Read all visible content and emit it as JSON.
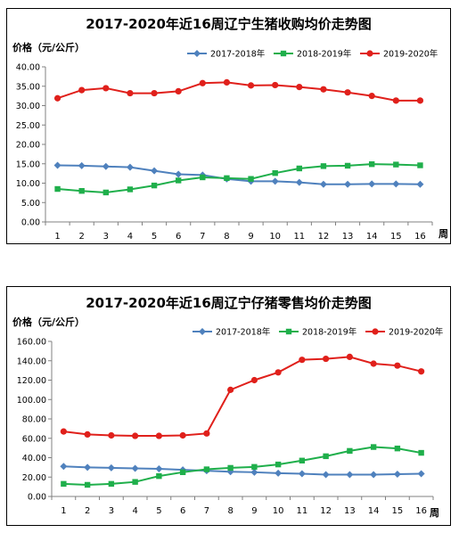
{
  "chart_data": [
    {
      "type": "line",
      "title": "2017-2020年近16周辽宁生猪收购均价走势图",
      "ylabel": "价格（元/公斤）",
      "xlabel": "周",
      "categories": [
        "1",
        "2",
        "3",
        "4",
        "5",
        "6",
        "7",
        "8",
        "9",
        "10",
        "11",
        "12",
        "13",
        "14",
        "15",
        "16"
      ],
      "ylim": [
        0,
        40
      ],
      "yticks": [
        "0.00",
        "5.00",
        "10.00",
        "15.00",
        "20.00",
        "25.00",
        "30.00",
        "35.00",
        "40.00"
      ],
      "legend_position": "top-right",
      "grid": false,
      "series": [
        {
          "name": "2017-2018年",
          "color": "#4F81BD",
          "marker": "diamond",
          "values": [
            14.6,
            14.5,
            14.3,
            14.1,
            13.2,
            12.3,
            12.1,
            11.1,
            10.5,
            10.5,
            10.2,
            9.7,
            9.7,
            9.8,
            9.8,
            9.7
          ]
        },
        {
          "name": "2018-2019年",
          "color": "#1FAF4B",
          "marker": "square",
          "values": [
            8.5,
            8.0,
            7.6,
            8.4,
            9.4,
            10.7,
            11.5,
            11.3,
            11.1,
            12.6,
            13.8,
            14.4,
            14.5,
            14.9,
            14.8,
            14.6
          ]
        },
        {
          "name": "2019-2020年",
          "color": "#E0201B",
          "marker": "circle",
          "values": [
            31.9,
            34.0,
            34.5,
            33.2,
            33.2,
            33.7,
            35.8,
            36.0,
            35.2,
            35.3,
            34.8,
            34.2,
            33.4,
            32.5,
            31.3,
            31.3
          ]
        }
      ]
    },
    {
      "type": "line",
      "title": "2017-2020年近16周辽宁仔猪零售均价走势图",
      "ylabel": "价格（元/公斤）",
      "xlabel": "周",
      "categories": [
        "1",
        "2",
        "3",
        "4",
        "5",
        "6",
        "7",
        "8",
        "9",
        "10",
        "11",
        "12",
        "13",
        "14",
        "15",
        "16"
      ],
      "ylim": [
        0,
        160
      ],
      "yticks": [
        "0.00",
        "20.00",
        "40.00",
        "60.00",
        "80.00",
        "100.00",
        "120.00",
        "140.00",
        "160.00"
      ],
      "legend_position": "top-right",
      "grid": false,
      "series": [
        {
          "name": "2017-2018年",
          "color": "#4F81BD",
          "marker": "diamond",
          "values": [
            31,
            30,
            29.5,
            29,
            28.5,
            27.5,
            26.5,
            25.5,
            25,
            24,
            23.5,
            22.5,
            22.5,
            22.5,
            23,
            23.5
          ]
        },
        {
          "name": "2018-2019年",
          "color": "#1FAF4B",
          "marker": "square",
          "values": [
            13,
            12,
            13,
            15,
            21,
            25,
            28,
            29.5,
            30.5,
            33,
            37,
            41.5,
            47,
            51,
            49.5,
            45
          ]
        },
        {
          "name": "2019-2020年",
          "color": "#E0201B",
          "marker": "circle",
          "values": [
            67,
            64,
            63,
            62.5,
            62.5,
            63,
            65,
            110,
            120,
            128,
            141,
            142,
            144,
            137,
            135,
            129
          ]
        }
      ]
    }
  ]
}
